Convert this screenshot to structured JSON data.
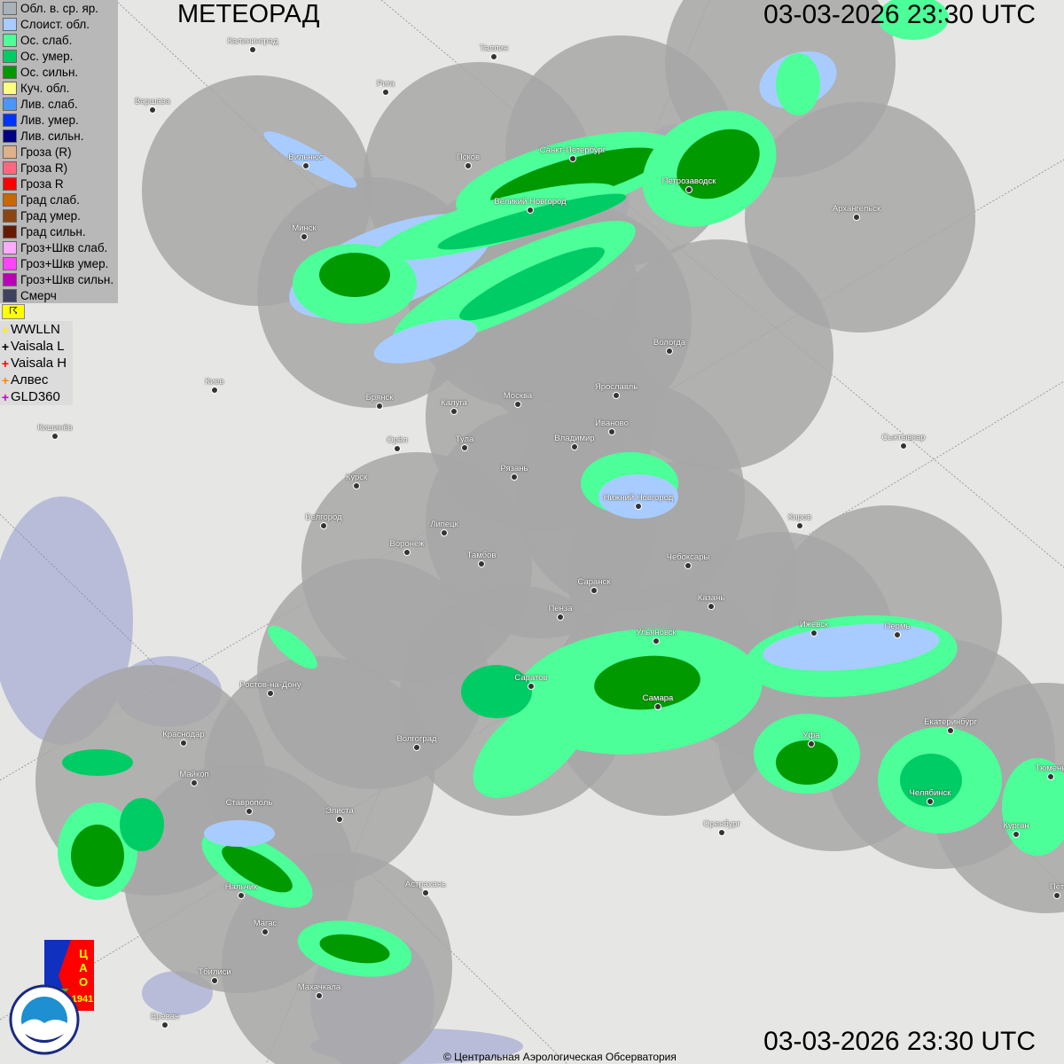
{
  "header": {
    "title": "МЕТЕОРАД",
    "timestamp_top": "03-03-2026  23:30 UTC",
    "timestamp_bottom": "03-03-2026  23:30 UTC"
  },
  "legend": [
    {
      "label": "Обл. в. ср. яр.",
      "color": "#a8b2b8"
    },
    {
      "label": "Слоист. обл.",
      "color": "#a8ccff"
    },
    {
      "label": "Ос. слаб.",
      "color": "#4cff99"
    },
    {
      "label": "Ос. умер.",
      "color": "#00cc66"
    },
    {
      "label": "Ос. сильн.",
      "color": "#009900"
    },
    {
      "label": "Куч. обл.",
      "color": "#ffff80"
    },
    {
      "label": "Лив. слаб.",
      "color": "#4d94ff"
    },
    {
      "label": "Лив. умер.",
      "color": "#0033ff"
    },
    {
      "label": "Лив. сильн.",
      "color": "#000080"
    },
    {
      "label": "Гроза (R)",
      "color": "#e0b088"
    },
    {
      "label": "Гроза R)",
      "color": "#ff6680"
    },
    {
      "label": "Гроза R",
      "color": "#ff0000"
    },
    {
      "label": "Град слаб.",
      "color": "#cc6600"
    },
    {
      "label": "Град умер.",
      "color": "#8b4513"
    },
    {
      "label": "Град сильн.",
      "color": "#661a00"
    },
    {
      "label": "Гроз+Шкв слаб.",
      "color": "#ffaaff"
    },
    {
      "label": "Гроз+Шкв умер.",
      "color": "#ff44ff"
    },
    {
      "label": "Гроз+Шкв сильн.",
      "color": "#bb00bb"
    },
    {
      "label": "Смерч",
      "color": "#404060"
    }
  ],
  "lightning_toggle": "☈",
  "lightning": [
    {
      "label": "WWLLN",
      "color": "#ffee00"
    },
    {
      "label": "Vaisala L",
      "color": "#000000"
    },
    {
      "label": "Vaisala H",
      "color": "#ff0000"
    },
    {
      "label": "Алвес",
      "color": "#ff8800"
    },
    {
      "label": "GLD360",
      "color": "#cc00cc"
    }
  ],
  "cities": [
    "Калининград",
    "Варшава",
    "Рига",
    "Таллин",
    "Санкт-Петербург",
    "Псков",
    "Вильнюс",
    "Великий Новгород",
    "Петрозаводск",
    "Архангельск",
    "Минск",
    "Вологда",
    "Киев",
    "Брянск",
    "Калуга",
    "Москва",
    "Ярославль",
    "Иваново",
    "Кишинёв",
    "Орёл",
    "Тула",
    "Владимир",
    "Сыктывкар",
    "Курск",
    "Рязань",
    "Нижний Новгород",
    "Белгород",
    "Липецк",
    "Киров",
    "Воронеж",
    "Тамбов",
    "Чебоксары",
    "Саранск",
    "Пенза",
    "Казань",
    "Ижевск",
    "Пермь",
    "Ульяновск",
    "Ростов-на-Дону",
    "Саратов",
    "Самара",
    "Екатеринбург",
    "Краснодар",
    "Волгоград",
    "Уфа",
    "Майкоп",
    "Челябинск",
    "Тюмень",
    "Ставрополь",
    "Элиста",
    "Оренбург",
    "Курган",
    "Нальчик",
    "Астрахань",
    "Пет",
    "Магас",
    "Тбилиси",
    "Махачкала",
    "Ереван"
  ],
  "logos": {
    "cao": "ЦАО 1941",
    "roshydromet": "РОСГИДРОМЕТ ROSHYDROMET"
  },
  "footer": {
    "copyright": "© Центральная Аэрологическая Обсерватория"
  }
}
